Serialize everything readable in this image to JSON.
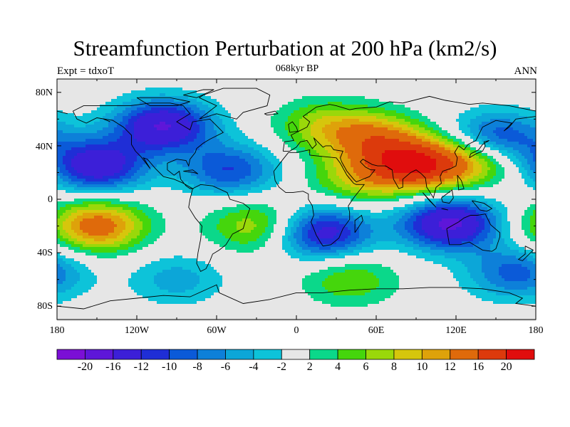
{
  "title": "Streamfunction Perturbation at 200 hPa (km2/s)",
  "experiment_label": "Expt = tdxoT",
  "period_label": "068kyr BP",
  "season_label": "ANN",
  "map": {
    "projection": "cylindrical equidistant",
    "lon_range": [
      -180,
      180
    ],
    "lat_range": [
      -90,
      90
    ],
    "x_ticks": [
      "180",
      "120W",
      "60W",
      "0",
      "60E",
      "120E",
      "180"
    ],
    "y_ticks": [
      "80N",
      "40N",
      "0",
      "40S",
      "80S"
    ],
    "background_color": "#e6e6e6"
  },
  "colorbar": {
    "colors": [
      "#7b0fd6",
      "#5e16d9",
      "#3c1fd8",
      "#1f2ed6",
      "#0b5ad8",
      "#0d80d9",
      "#0ca6d8",
      "#0dc3d9",
      "#e6e6e6",
      "#0bd88a",
      "#45d60c",
      "#9ad80a",
      "#d6c60c",
      "#dea20a",
      "#df6a0b",
      "#dc3a0c",
      "#e00d0d"
    ],
    "labels": [
      "-20",
      "-16",
      "-12",
      "-10",
      "-8",
      "-6",
      "-4",
      "-2",
      "2",
      "4",
      "6",
      "8",
      "10",
      "12",
      "16",
      "20"
    ]
  },
  "chart_data": {
    "type": "heatmap",
    "title": "Streamfunction Perturbation at 200 hPa (km2/s)",
    "units": "km2/s",
    "contour_levels": [
      -20,
      -16,
      -12,
      -10,
      -8,
      -6,
      -4,
      -2,
      2,
      4,
      6,
      8,
      10,
      12,
      16,
      20
    ],
    "features": [
      {
        "lon": 90,
        "lat": 25,
        "peak": 18
      },
      {
        "lon": 60,
        "lat": 45,
        "peak": 11
      },
      {
        "lon": 45,
        "lat": 15,
        "peak": 7
      },
      {
        "lon": 135,
        "lat": 30,
        "peak": 10
      },
      {
        "lon": 20,
        "lat": 55,
        "peak": 7
      },
      {
        "lon": -150,
        "lat": -20,
        "peak": 14
      },
      {
        "lon": -30,
        "lat": -20,
        "peak": 8
      },
      {
        "lon": 40,
        "lat": -60,
        "peak": 6
      },
      {
        "lon": -100,
        "lat": 55,
        "peak": -16
      },
      {
        "lon": -150,
        "lat": 25,
        "peak": -15
      },
      {
        "lon": -50,
        "lat": 22,
        "peak": -10
      },
      {
        "lon": 20,
        "lat": -25,
        "peak": -14
      },
      {
        "lon": 115,
        "lat": -18,
        "peak": -17
      },
      {
        "lon": 150,
        "lat": 45,
        "peak": -12
      },
      {
        "lon": -90,
        "lat": -60,
        "peak": -5
      },
      {
        "lon": 165,
        "lat": -55,
        "peak": -9
      }
    ]
  }
}
